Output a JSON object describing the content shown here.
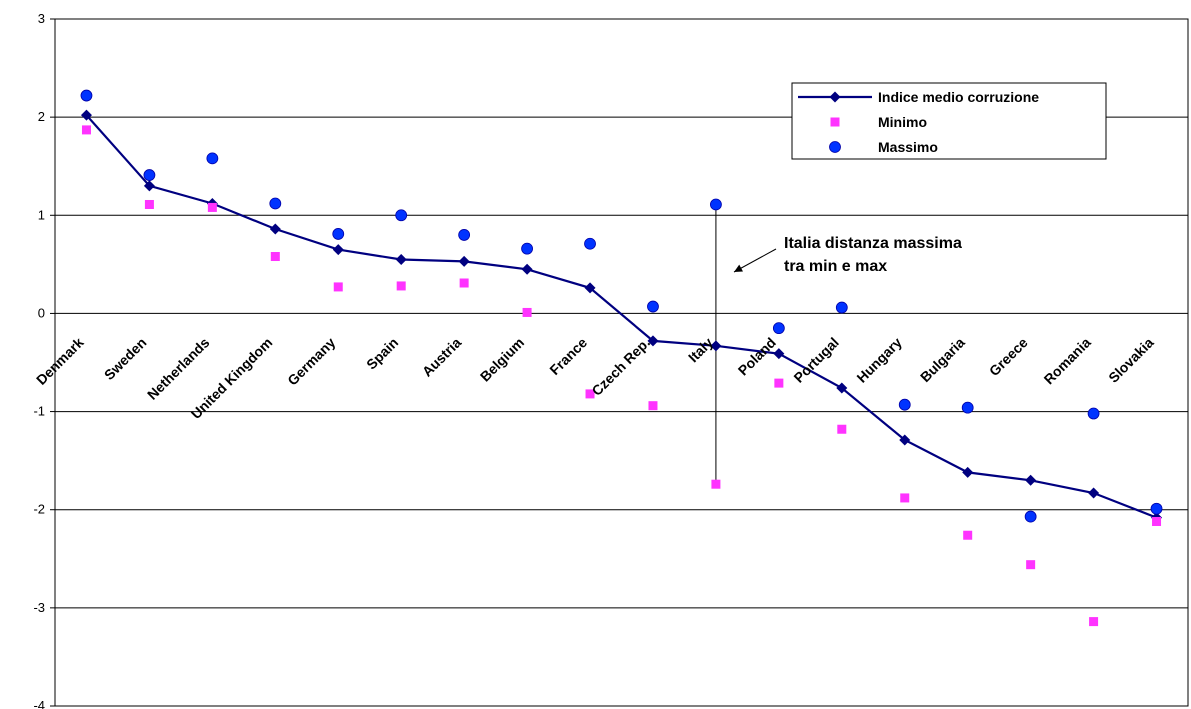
{
  "chart_data": {
    "type": "line",
    "categories": [
      "Denmark",
      "Sweden",
      "Netherlands",
      "United Kingdom",
      "Germany",
      "Spain",
      "Austria",
      "Belgium",
      "France",
      "Czech Rep.",
      "Italy",
      "Poland",
      "Portugal",
      "Hungary",
      "Bulgaria",
      "Greece",
      "Romania",
      "Slovakia"
    ],
    "series": [
      {
        "name": "Indice medio corruzione",
        "kind": "line",
        "color": "#000080",
        "values": [
          2.02,
          1.3,
          1.12,
          0.86,
          0.65,
          0.55,
          0.53,
          0.45,
          0.26,
          -0.28,
          -0.33,
          -0.41,
          -0.76,
          -1.29,
          -1.62,
          -1.7,
          -1.83,
          -2.08
        ]
      },
      {
        "name": "Minimo",
        "kind": "marker",
        "marker": "square",
        "color": "#ff33ff",
        "values": [
          1.87,
          1.11,
          1.08,
          0.58,
          0.27,
          0.28,
          0.31,
          0.01,
          -0.82,
          -0.94,
          -1.74,
          -0.71,
          -1.18,
          -1.88,
          -2.26,
          -2.56,
          -3.14,
          -2.12
        ]
      },
      {
        "name": "Massimo",
        "kind": "marker",
        "marker": "circle",
        "color": "#0033ff",
        "values": [
          2.22,
          1.41,
          1.58,
          1.12,
          0.81,
          1.0,
          0.8,
          0.66,
          0.71,
          0.07,
          1.11,
          -0.15,
          0.06,
          -0.93,
          -0.96,
          -2.07,
          -1.02,
          -1.99
        ]
      }
    ],
    "ylim": [
      -4,
      3
    ],
    "yticks": [
      -4,
      -3,
      -2,
      -1,
      0,
      1,
      2,
      3
    ],
    "grid": true,
    "legend_position": "top-right",
    "annotation": {
      "lines": [
        "Italia distanza massima",
        "tra min e max"
      ],
      "target_category": "Italy"
    }
  }
}
